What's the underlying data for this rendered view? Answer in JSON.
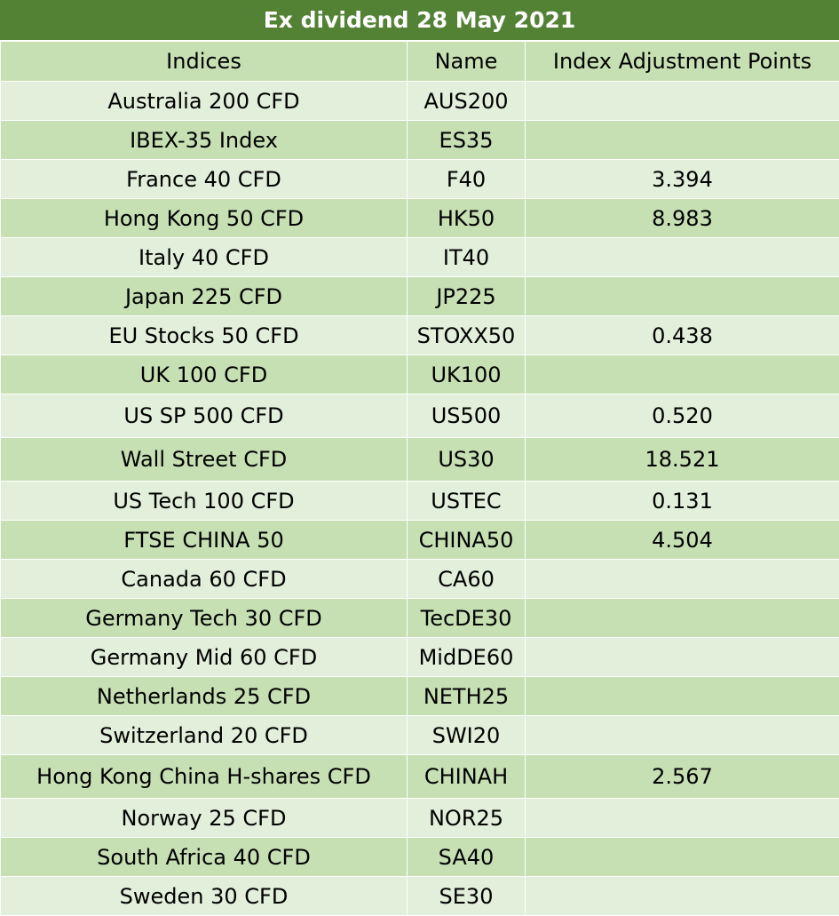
{
  "title": "Ex dividend 28 May 2021",
  "columns": {
    "indices": "Indices",
    "name": "Name",
    "points": "Index Adjustment Points"
  },
  "rows": [
    {
      "index": "Australia 200 CFD",
      "name": "AUS200",
      "points": ""
    },
    {
      "index": "IBEX-35 Index",
      "name": "ES35",
      "points": ""
    },
    {
      "index": "France 40 CFD",
      "name": "F40",
      "points": "3.394"
    },
    {
      "index": "Hong Kong 50 CFD",
      "name": "HK50",
      "points": "8.983"
    },
    {
      "index": "Italy 40 CFD",
      "name": "IT40",
      "points": ""
    },
    {
      "index": "Japan 225 CFD",
      "name": "JP225",
      "points": ""
    },
    {
      "index": "EU Stocks 50 CFD",
      "name": "STOXX50",
      "points": "0.438"
    },
    {
      "index": "UK 100 CFD",
      "name": "UK100",
      "points": ""
    },
    {
      "index": "US SP 500 CFD",
      "name": "US500",
      "points": "0.520"
    },
    {
      "index": "Wall Street CFD",
      "name": "US30",
      "points": "18.521"
    },
    {
      "index": "US Tech 100 CFD",
      "name": "USTEC",
      "points": "0.131"
    },
    {
      "index": "FTSE CHINA 50",
      "name": "CHINA50",
      "points": "4.504"
    },
    {
      "index": "Canada 60 CFD",
      "name": "CA60",
      "points": ""
    },
    {
      "index": "Germany Tech 30 CFD",
      "name": "TecDE30",
      "points": ""
    },
    {
      "index": "Germany Mid 60 CFD",
      "name": "MidDE60",
      "points": ""
    },
    {
      "index": "Netherlands 25 CFD",
      "name": "NETH25",
      "points": ""
    },
    {
      "index": "Switzerland 20 CFD",
      "name": "SWI20",
      "points": ""
    },
    {
      "index": "Hong Kong China H-shares CFD",
      "name": "CHINAH",
      "points": "2.567"
    },
    {
      "index": "Norway 25 CFD",
      "name": "NOR25",
      "points": ""
    },
    {
      "index": "South Africa 40 CFD",
      "name": "SA40",
      "points": ""
    },
    {
      "index": "Sweden 30 CFD",
      "name": "SE30",
      "points": ""
    }
  ],
  "colors": {
    "title_bg": "#548235",
    "title_text": "#ffffff",
    "row_light": "#e2efda",
    "row_dark": "#c6e0b4"
  }
}
